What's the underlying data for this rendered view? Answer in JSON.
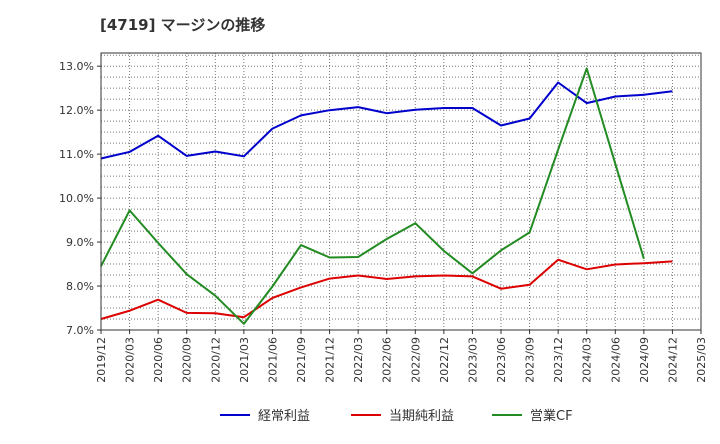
{
  "chart_data": {
    "type": "line",
    "title": "[4719]  マージンの推移",
    "xlabel": "",
    "ylabel": "",
    "ylim": [
      7.0,
      13.3
    ],
    "yticks": [
      7.0,
      8.0,
      9.0,
      10.0,
      11.0,
      12.0,
      13.0
    ],
    "ytick_labels": [
      "7.0%",
      "8.0%",
      "9.0%",
      "10.0%",
      "11.0%",
      "12.0%",
      "13.0%"
    ],
    "x": [
      "2019/12",
      "2020/03",
      "2020/06",
      "2020/09",
      "2020/12",
      "2021/03",
      "2021/06",
      "2021/09",
      "2021/12",
      "2022/03",
      "2022/06",
      "2022/09",
      "2022/12",
      "2023/03",
      "2023/06",
      "2023/09",
      "2023/12",
      "2024/03",
      "2024/06",
      "2024/09",
      "2024/12",
      "2025/03"
    ],
    "grid": true,
    "legend_position": "bottom",
    "series": [
      {
        "name": "経常利益",
        "color": "#0000cc",
        "values": [
          10.9,
          11.05,
          11.42,
          10.96,
          11.06,
          10.95,
          11.58,
          11.88,
          12.0,
          12.07,
          11.93,
          12.01,
          12.05,
          12.05,
          11.65,
          11.81,
          12.63,
          12.16,
          12.31,
          12.35,
          12.43,
          null
        ]
      },
      {
        "name": "当期純利益",
        "color": "#dd0000",
        "values": [
          7.25,
          7.44,
          7.69,
          7.39,
          7.38,
          7.29,
          7.73,
          7.97,
          8.17,
          8.24,
          8.16,
          8.22,
          8.24,
          8.22,
          7.94,
          8.03,
          8.6,
          8.38,
          8.49,
          8.52,
          8.56,
          null
        ]
      },
      {
        "name": "営業CF",
        "color": "#228b22",
        "values": [
          8.45,
          9.72,
          8.98,
          8.27,
          7.78,
          7.14,
          7.99,
          8.93,
          8.65,
          8.66,
          9.07,
          9.43,
          8.8,
          8.29,
          8.81,
          9.22,
          11.1,
          12.95,
          10.78,
          8.62,
          null,
          null
        ]
      }
    ]
  }
}
